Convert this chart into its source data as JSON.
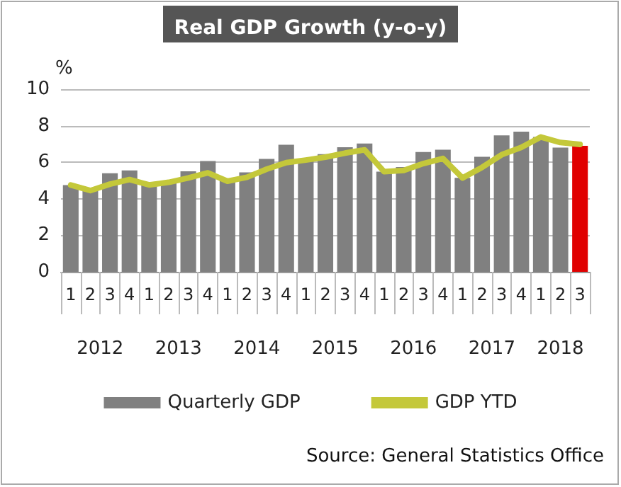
{
  "chart_data": {
    "type": "bar",
    "title": "Real GDP Growth (y-o-y)",
    "ylabel": "%",
    "categories": [
      "1",
      "2",
      "3",
      "4",
      "1",
      "2",
      "3",
      "4",
      "1",
      "2",
      "3",
      "4",
      "1",
      "2",
      "3",
      "4",
      "1",
      "2",
      "3",
      "4",
      "1",
      "2",
      "3",
      "4",
      "1",
      "2",
      "3"
    ],
    "series": [
      {
        "name": "Quarterly GDP",
        "color": "#808080",
        "colors": [
          "#808080",
          "#808080",
          "#808080",
          "#808080",
          "#808080",
          "#808080",
          "#808080",
          "#808080",
          "#808080",
          "#808080",
          "#808080",
          "#808080",
          "#808080",
          "#808080",
          "#808080",
          "#808080",
          "#808080",
          "#808080",
          "#808080",
          "#808080",
          "#808080",
          "#808080",
          "#808080",
          "#808080",
          "#808080",
          "#808080",
          "#e00000"
        ],
        "values": [
          4.75,
          4.5,
          5.4,
          5.55,
          4.76,
          5.0,
          5.5,
          6.07,
          5.06,
          5.45,
          6.18,
          6.96,
          6.12,
          6.44,
          6.82,
          7.03,
          5.48,
          5.74,
          6.56,
          6.69,
          5.15,
          6.3,
          7.47,
          7.67,
          7.38,
          6.8,
          6.9
        ]
      },
      {
        "name": "GDP YTD",
        "type": "line",
        "color": "#c4c83a",
        "values": [
          4.75,
          4.45,
          4.8,
          5.05,
          4.76,
          4.9,
          5.14,
          5.42,
          4.96,
          5.18,
          5.62,
          5.98,
          6.12,
          6.28,
          6.5,
          6.68,
          5.48,
          5.55,
          5.93,
          6.21,
          5.14,
          5.72,
          6.41,
          6.81,
          7.38,
          7.08,
          6.98
        ]
      }
    ],
    "ylim": [
      0,
      10
    ],
    "yticks": [
      0,
      2,
      4,
      6,
      8,
      10
    ],
    "grid": "y",
    "legend": "bottom",
    "marker": "none",
    "line_style": "solid",
    "annotations": [
      "2012",
      "2013",
      "2014",
      "2015",
      "2016",
      "2017",
      "2018",
      "Source: General Statistics Office"
    ]
  }
}
